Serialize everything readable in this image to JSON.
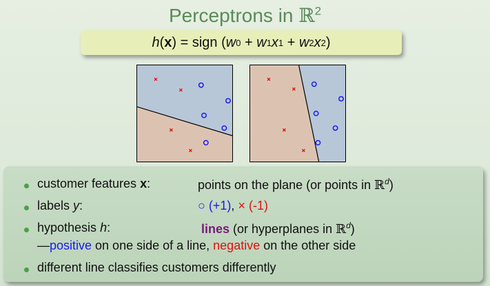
{
  "slide": {
    "title_text": "Perceptrons in ",
    "title_space": "ℝ",
    "title_power": "2",
    "formula": {
      "lhs_h": "h",
      "lhs_x": "x",
      "equals_sign": "= sign",
      "w0": "w",
      "w0_sub": "0",
      "plus1": "+",
      "w1": "w",
      "w1_sub": "1",
      "x1": "x",
      "x1_sub": "1",
      "plus2": "+",
      "w2": "w",
      "w2_sub": "2",
      "x2": "x",
      "x2_sub": "2"
    }
  },
  "plots": [
    {
      "name": "left-plot",
      "positive_region_color": "#b7c7d8",
      "negative_region_color": "#dcc3b1",
      "positive_points": [
        [
          0.67,
          0.21
        ],
        [
          0.95,
          0.37
        ],
        [
          0.7,
          0.52
        ],
        [
          0.91,
          0.65
        ],
        [
          0.72,
          0.8
        ]
      ],
      "negative_points": [
        [
          0.2,
          0.15
        ],
        [
          0.46,
          0.26
        ],
        [
          0.36,
          0.67
        ],
        [
          0.56,
          0.88
        ]
      ],
      "line": [
        [
          0,
          0.43
        ],
        [
          1,
          0.73
        ]
      ]
    },
    {
      "name": "right-plot",
      "positive_region_color": "#b7c7d8",
      "negative_region_color": "#dcc3b1",
      "positive_points": [
        [
          0.67,
          0.2
        ],
        [
          0.95,
          0.35
        ],
        [
          0.69,
          0.5
        ],
        [
          0.89,
          0.65
        ],
        [
          0.71,
          0.8
        ]
      ],
      "negative_points": [
        [
          0.2,
          0.15
        ],
        [
          0.46,
          0.25
        ],
        [
          0.36,
          0.67
        ],
        [
          0.56,
          0.88
        ]
      ],
      "line": [
        [
          0.51,
          0
        ],
        [
          0.72,
          1
        ]
      ]
    }
  ],
  "bullets": {
    "b1_label_pre": "customer features ",
    "b1_label_var": "x",
    "b1_label_post": ":",
    "b1_value_pre": "points on the plane (or points in ",
    "b1_value_space": "ℝ",
    "b1_value_power": "d",
    "b1_value_post": ")",
    "b2_label_pre": "labels ",
    "b2_label_var": "y",
    "b2_label_post": ":",
    "b2_pos_symbol": "○",
    "b2_pos_text": "(+1)",
    "b2_sep": ",",
    "b2_neg_symbol": "×",
    "b2_neg_text": "(-1)",
    "b3_label_pre": "hypothesis ",
    "b3_label_var": "h",
    "b3_label_post": ":",
    "b3_value_strong": "lines",
    "b3_value_pre": " (or hyperplanes in ",
    "b3_value_space": "ℝ",
    "b3_value_power": "d",
    "b3_value_post": ")",
    "b3_line2_dash": "—",
    "b3_line2_pos": "positive",
    "b3_line2_mid": " on one side of a line, ",
    "b3_line2_neg": "negative",
    "b3_line2_end": " on the other side",
    "b4_text": "different line classifies customers differently"
  },
  "colors": {
    "title": "#5a8a5a",
    "formula_box": "#e8eeb8",
    "positive": "#1a1aee",
    "negative": "#dd1111",
    "emphasis": "#7a1a7a",
    "bullet": "#4aa04a"
  }
}
